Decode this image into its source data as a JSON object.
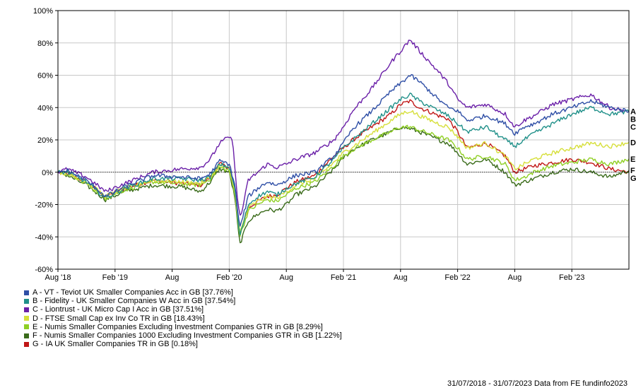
{
  "chart_data": {
    "type": "line",
    "y_ticks": [
      "100%",
      "80%",
      "60%",
      "40%",
      "20%",
      "0%",
      "-20%",
      "-40%",
      "-60%"
    ],
    "ylim": [
      -60,
      100
    ],
    "x_ticks": [
      {
        "label": "Aug '18",
        "t": 0
      },
      {
        "label": "Feb '19",
        "t": 6
      },
      {
        "label": "Aug",
        "t": 12
      },
      {
        "label": "Feb '20",
        "t": 18
      },
      {
        "label": "Aug",
        "t": 24
      },
      {
        "label": "Feb '21",
        "t": 30
      },
      {
        "label": "Aug",
        "t": 36
      },
      {
        "label": "Feb '22",
        "t": 42
      },
      {
        "label": "Aug",
        "t": 48
      },
      {
        "label": "Feb '23",
        "t": 54
      }
    ],
    "x_months": [
      0,
      60
    ],
    "grid": true,
    "legend_position": "bottom-left",
    "series": [
      {
        "code": "A",
        "label": "A - VT - Teviot UK Smaller Companies Acc in GB [37.76%]",
        "color": "#2f4fa6",
        "points": [
          [
            0,
            0
          ],
          [
            1,
            1
          ],
          [
            3,
            -5
          ],
          [
            5,
            -15
          ],
          [
            7,
            -9
          ],
          [
            10,
            -2
          ],
          [
            13,
            -3
          ],
          [
            15,
            -4
          ],
          [
            16,
            -1
          ],
          [
            17,
            7
          ],
          [
            18,
            5
          ],
          [
            18.6,
            -8
          ],
          [
            19.1,
            -35
          ],
          [
            20,
            -15
          ],
          [
            21,
            -10
          ],
          [
            22,
            -6
          ],
          [
            23,
            -8
          ],
          [
            24,
            -5
          ],
          [
            25,
            -2
          ],
          [
            27,
            0
          ],
          [
            29,
            10
          ],
          [
            30,
            18
          ],
          [
            31,
            27
          ],
          [
            33,
            38
          ],
          [
            35,
            50
          ],
          [
            37,
            60
          ],
          [
            38,
            56
          ],
          [
            40,
            45
          ],
          [
            41,
            40
          ],
          [
            42,
            38
          ],
          [
            43,
            32
          ],
          [
            45,
            35
          ],
          [
            47,
            30
          ],
          [
            48,
            24
          ],
          [
            49,
            28
          ],
          [
            50,
            30
          ],
          [
            52,
            36
          ],
          [
            54,
            40
          ],
          [
            56,
            44
          ],
          [
            58,
            40
          ],
          [
            60,
            37.76
          ]
        ]
      },
      {
        "code": "B",
        "label": "B - Fidelity - UK Smaller Companies W Acc in GB [37.54%]",
        "color": "#209089",
        "points": [
          [
            0,
            0
          ],
          [
            1,
            0
          ],
          [
            3,
            -6
          ],
          [
            5,
            -16
          ],
          [
            7,
            -10
          ],
          [
            10,
            -4
          ],
          [
            13,
            -4
          ],
          [
            15,
            -5
          ],
          [
            16,
            -3
          ],
          [
            17,
            5
          ],
          [
            18,
            3
          ],
          [
            18.6,
            -10
          ],
          [
            19.1,
            -40
          ],
          [
            20,
            -20
          ],
          [
            21,
            -15
          ],
          [
            22,
            -12
          ],
          [
            23,
            -14
          ],
          [
            24,
            -10
          ],
          [
            25,
            -7
          ],
          [
            27,
            -3
          ],
          [
            29,
            8
          ],
          [
            30,
            15
          ],
          [
            31,
            20
          ],
          [
            33,
            30
          ],
          [
            35,
            40
          ],
          [
            36,
            45
          ],
          [
            37,
            48
          ],
          [
            38,
            44
          ],
          [
            40,
            38
          ],
          [
            41,
            35
          ],
          [
            42,
            30
          ],
          [
            43,
            25
          ],
          [
            45,
            28
          ],
          [
            47,
            20
          ],
          [
            48,
            16
          ],
          [
            49,
            20
          ],
          [
            50,
            24
          ],
          [
            52,
            30
          ],
          [
            54,
            36
          ],
          [
            56,
            40
          ],
          [
            58,
            36
          ],
          [
            60,
            37.54
          ]
        ]
      },
      {
        "code": "C",
        "label": "C - Liontrust - UK Micro Cap I Acc in GB [37.51%]",
        "color": "#6a1fa8",
        "points": [
          [
            0,
            0
          ],
          [
            1,
            2
          ],
          [
            3,
            -3
          ],
          [
            5,
            -12
          ],
          [
            7,
            -7
          ],
          [
            10,
            0
          ],
          [
            13,
            2
          ],
          [
            15,
            3
          ],
          [
            16,
            8
          ],
          [
            17,
            18
          ],
          [
            18,
            22
          ],
          [
            18.4,
            18
          ],
          [
            18.9,
            -20
          ],
          [
            19.2,
            -28
          ],
          [
            20,
            -5
          ],
          [
            21,
            0
          ],
          [
            22,
            5
          ],
          [
            23,
            3
          ],
          [
            24,
            5
          ],
          [
            25,
            8
          ],
          [
            27,
            12
          ],
          [
            29,
            20
          ],
          [
            30,
            28
          ],
          [
            31,
            38
          ],
          [
            33,
            52
          ],
          [
            35,
            68
          ],
          [
            36,
            75
          ],
          [
            37,
            82
          ],
          [
            38,
            75
          ],
          [
            40,
            62
          ],
          [
            41,
            55
          ],
          [
            42,
            45
          ],
          [
            43,
            40
          ],
          [
            45,
            42
          ],
          [
            47,
            36
          ],
          [
            48,
            28
          ],
          [
            49,
            32
          ],
          [
            50,
            35
          ],
          [
            52,
            42
          ],
          [
            54,
            45
          ],
          [
            56,
            48
          ],
          [
            58,
            40
          ],
          [
            60,
            37.51
          ]
        ]
      },
      {
        "code": "D",
        "label": "D - FTSE Small Cap ex Inv Co TR in GB [18.43%]",
        "color": "#d6df3a",
        "points": [
          [
            0,
            0
          ],
          [
            1,
            -1
          ],
          [
            3,
            -6
          ],
          [
            5,
            -15
          ],
          [
            7,
            -10
          ],
          [
            10,
            -5
          ],
          [
            13,
            -6
          ],
          [
            15,
            -7
          ],
          [
            16,
            -3
          ],
          [
            17,
            4
          ],
          [
            18,
            2
          ],
          [
            18.6,
            -12
          ],
          [
            19.1,
            -38
          ],
          [
            20,
            -22
          ],
          [
            21,
            -18
          ],
          [
            22,
            -15
          ],
          [
            23,
            -16
          ],
          [
            24,
            -12
          ],
          [
            25,
            -8
          ],
          [
            27,
            -4
          ],
          [
            29,
            6
          ],
          [
            30,
            12
          ],
          [
            31,
            16
          ],
          [
            33,
            24
          ],
          [
            35,
            32
          ],
          [
            36,
            36
          ],
          [
            37,
            38
          ],
          [
            38,
            35
          ],
          [
            40,
            30
          ],
          [
            41,
            28
          ],
          [
            42,
            22
          ],
          [
            43,
            15
          ],
          [
            45,
            18
          ],
          [
            47,
            10
          ],
          [
            48,
            2
          ],
          [
            49,
            5
          ],
          [
            50,
            8
          ],
          [
            52,
            12
          ],
          [
            54,
            15
          ],
          [
            56,
            18
          ],
          [
            58,
            16
          ],
          [
            60,
            18.43
          ]
        ]
      },
      {
        "code": "E",
        "label": "E - Numis Smaller Companies Excluding Investment Companies GTR in GB [8.29%]",
        "color": "#8fcf24",
        "points": [
          [
            0,
            0
          ],
          [
            1,
            -1
          ],
          [
            3,
            -7
          ],
          [
            5,
            -16
          ],
          [
            7,
            -11
          ],
          [
            10,
            -6
          ],
          [
            13,
            -7
          ],
          [
            15,
            -8
          ],
          [
            16,
            -4
          ],
          [
            17,
            3
          ],
          [
            18,
            1
          ],
          [
            18.6,
            -14
          ],
          [
            19.1,
            -40
          ],
          [
            20,
            -24
          ],
          [
            21,
            -20
          ],
          [
            22,
            -17
          ],
          [
            23,
            -18
          ],
          [
            24,
            -14
          ],
          [
            25,
            -10
          ],
          [
            27,
            -6
          ],
          [
            29,
            4
          ],
          [
            30,
            10
          ],
          [
            31,
            14
          ],
          [
            33,
            20
          ],
          [
            35,
            25
          ],
          [
            36,
            28
          ],
          [
            37,
            28
          ],
          [
            38,
            26
          ],
          [
            40,
            22
          ],
          [
            41,
            20
          ],
          [
            42,
            15
          ],
          [
            43,
            8
          ],
          [
            45,
            10
          ],
          [
            47,
            5
          ],
          [
            48,
            -5
          ],
          [
            49,
            -3
          ],
          [
            50,
            0
          ],
          [
            52,
            4
          ],
          [
            54,
            6
          ],
          [
            56,
            8
          ],
          [
            58,
            5
          ],
          [
            60,
            8.29
          ]
        ]
      },
      {
        "code": "F",
        "label": "F - Numis Smaller Companies 1000 Excluding Investment Companies GTR in GB [1.22%]",
        "color": "#3a6b1a",
        "points": [
          [
            0,
            0
          ],
          [
            1,
            -2
          ],
          [
            3,
            -8
          ],
          [
            5,
            -17
          ],
          [
            7,
            -12
          ],
          [
            10,
            -8
          ],
          [
            13,
            -9
          ],
          [
            15,
            -12
          ],
          [
            16,
            -6
          ],
          [
            17,
            2
          ],
          [
            18,
            0
          ],
          [
            18.6,
            -16
          ],
          [
            19.1,
            -45
          ],
          [
            20,
            -30
          ],
          [
            21,
            -26
          ],
          [
            22,
            -23
          ],
          [
            23,
            -24
          ],
          [
            24,
            -20
          ],
          [
            25,
            -14
          ],
          [
            27,
            -9
          ],
          [
            29,
            2
          ],
          [
            30,
            9
          ],
          [
            31,
            14
          ],
          [
            33,
            20
          ],
          [
            35,
            25
          ],
          [
            36,
            28
          ],
          [
            37,
            27
          ],
          [
            38,
            25
          ],
          [
            40,
            20
          ],
          [
            41,
            18
          ],
          [
            42,
            12
          ],
          [
            43,
            5
          ],
          [
            45,
            8
          ],
          [
            47,
            0
          ],
          [
            48,
            -8
          ],
          [
            49,
            -6
          ],
          [
            50,
            -4
          ],
          [
            52,
            0
          ],
          [
            54,
            2
          ],
          [
            56,
            0
          ],
          [
            58,
            -3
          ],
          [
            60,
            1.22
          ]
        ]
      },
      {
        "code": "G",
        "label": "G - IA UK Smaller Companies TR in GB [0.18%]",
        "color": "#c01616",
        "points": [
          [
            0,
            0
          ],
          [
            1,
            -1
          ],
          [
            3,
            -6
          ],
          [
            5,
            -15
          ],
          [
            7,
            -10
          ],
          [
            10,
            -5
          ],
          [
            13,
            -7
          ],
          [
            15,
            -8
          ],
          [
            16,
            -3
          ],
          [
            17,
            5
          ],
          [
            18,
            3
          ],
          [
            18.6,
            -12
          ],
          [
            19.1,
            -38
          ],
          [
            20,
            -22
          ],
          [
            21,
            -18
          ],
          [
            22,
            -15
          ],
          [
            23,
            -14
          ],
          [
            24,
            -10
          ],
          [
            25,
            -6
          ],
          [
            27,
            -2
          ],
          [
            29,
            10
          ],
          [
            30,
            15
          ],
          [
            31,
            20
          ],
          [
            33,
            28
          ],
          [
            35,
            36
          ],
          [
            36,
            42
          ],
          [
            37,
            44
          ],
          [
            38,
            40
          ],
          [
            40,
            35
          ],
          [
            41,
            33
          ],
          [
            42,
            25
          ],
          [
            43,
            15
          ],
          [
            45,
            18
          ],
          [
            47,
            10
          ],
          [
            48,
            0
          ],
          [
            49,
            2
          ],
          [
            50,
            4
          ],
          [
            52,
            6
          ],
          [
            54,
            8
          ],
          [
            56,
            6
          ],
          [
            58,
            2
          ],
          [
            60,
            0.18
          ]
        ]
      }
    ]
  },
  "footer": "31/07/2018 - 31/07/2023 Data from FE fundinfo2023"
}
